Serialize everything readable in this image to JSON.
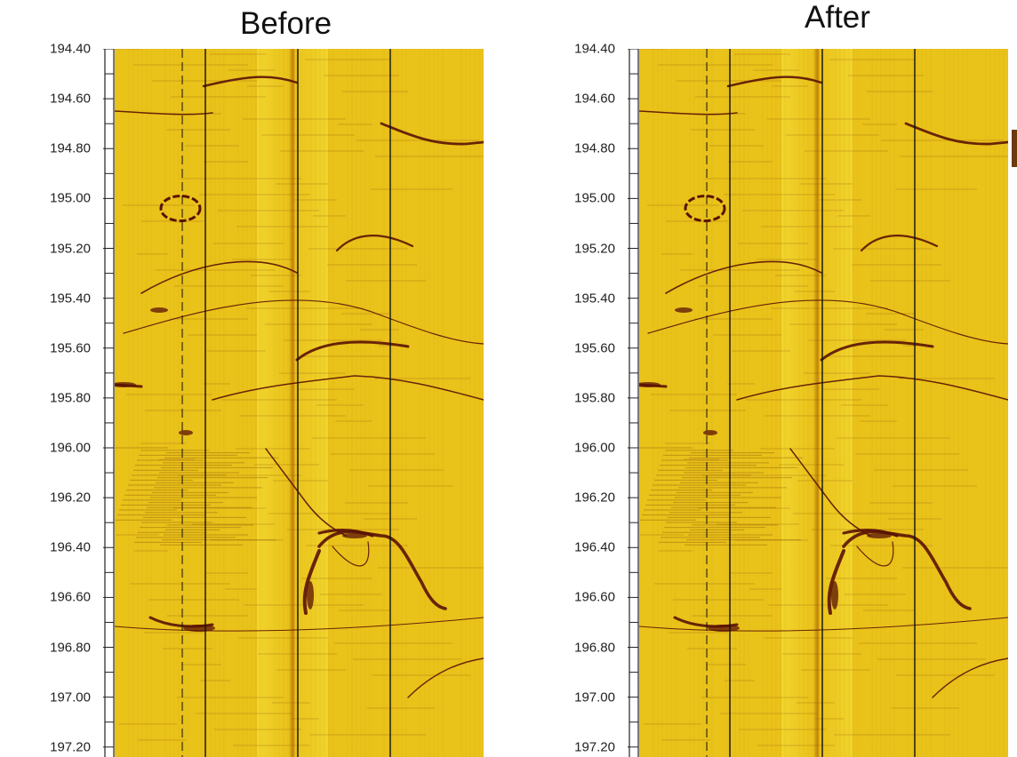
{
  "panels": [
    {
      "title": "Before",
      "variant": "before"
    },
    {
      "title": "After",
      "variant": "after"
    }
  ],
  "depth_axis": {
    "labels": [
      "194.40",
      "194.60",
      "194.80",
      "195.00",
      "195.20",
      "195.40",
      "195.60",
      "195.80",
      "196.00",
      "196.20",
      "196.40",
      "196.60",
      "196.80",
      "197.00",
      "197.20"
    ],
    "values": [
      194.4,
      194.6,
      194.8,
      195.0,
      195.2,
      195.4,
      195.6,
      195.8,
      196.0,
      196.2,
      196.4,
      196.6,
      196.8,
      197.0,
      197.2
    ],
    "range": [
      194.4,
      197.24
    ],
    "minor_ticks_per_major": 2
  },
  "colors": {
    "background": "#ffffff",
    "image_yellow": "#e9c21a",
    "image_light": "#f2d630",
    "image_dark": "#c78a0c",
    "feature": "#5a1206",
    "track_line": "#111111"
  }
}
